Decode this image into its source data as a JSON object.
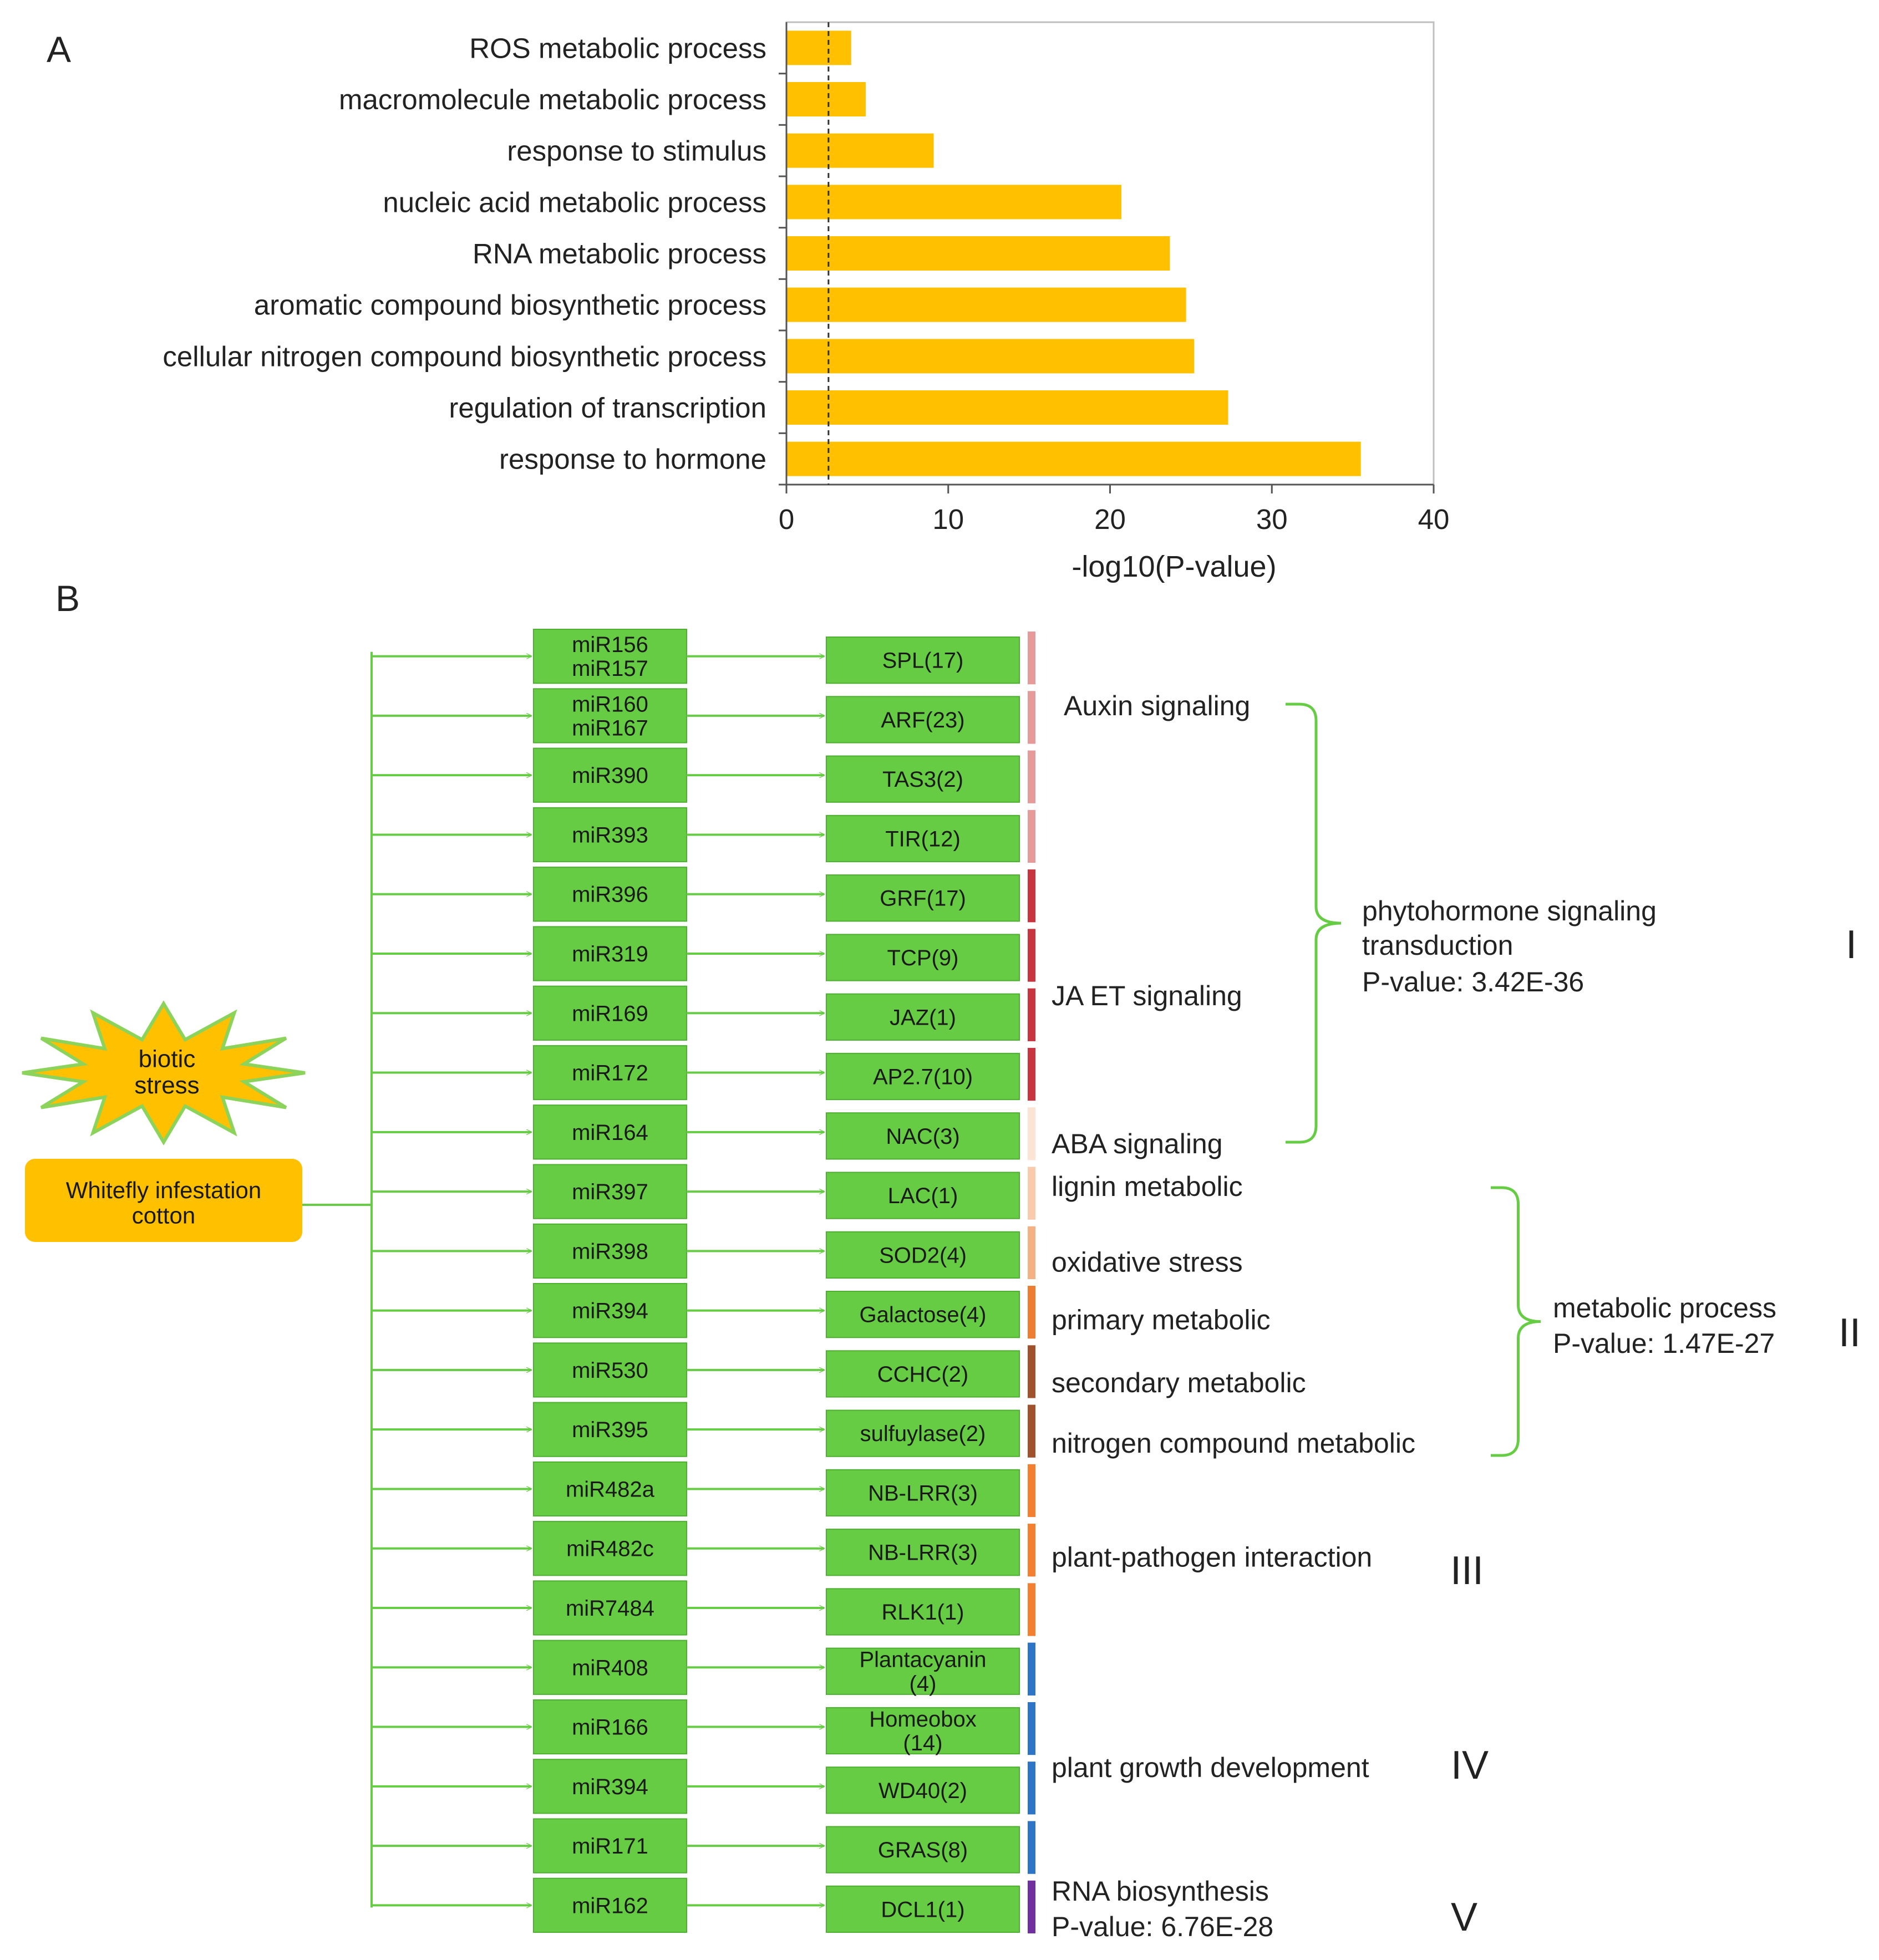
{
  "panelA": {
    "panel_label": "A",
    "chart_data": {
      "type": "bar",
      "orientation": "horizontal",
      "categories": [
        "ROS metabolic process",
        "macromolecule metabolic process",
        "response to stimulus",
        "nucleic acid metabolic process",
        "RNA metabolic process",
        "aromatic compound biosynthetic process",
        "cellular nitrogen compound biosynthetic process",
        "regulation of transcription",
        "response to hormone"
      ],
      "values": [
        4.0,
        4.9,
        9.1,
        20.7,
        23.7,
        24.7,
        25.2,
        27.3,
        35.5
      ],
      "title": "",
      "xlabel": "-log10(P-value)",
      "ylabel": "",
      "xlim": [
        0,
        40
      ],
      "xticks": [
        "0",
        "10",
        "20",
        "30",
        "40"
      ],
      "threshold": 2.6,
      "bar_color": "#FFC000",
      "grid": false
    }
  },
  "panelB": {
    "panel_label": "B",
    "sources": {
      "stress": "biotic\nstress",
      "infestation": "Whitefly infestation\ncotton"
    },
    "rows": [
      {
        "mirna": "miR156\nmiR157",
        "target": "SPL(17)",
        "bar": "#E79A9A"
      },
      {
        "mirna": "miR160\nmiR167",
        "target": "ARF(23)",
        "bar": "#E79A9A"
      },
      {
        "mirna": "miR390",
        "target": "TAS3(2)",
        "bar": "#E79A9A"
      },
      {
        "mirna": "miR393",
        "target": "TIR(12)",
        "bar": "#E79A9A"
      },
      {
        "mirna": "miR396",
        "target": "GRF(17)",
        "bar": "#C8353F"
      },
      {
        "mirna": "miR319",
        "target": "TCP(9)",
        "bar": "#C8353F"
      },
      {
        "mirna": "miR169",
        "target": "JAZ(1)",
        "bar": "#C8353F"
      },
      {
        "mirna": "miR172",
        "target": "AP2.7(10)",
        "bar": "#C8353F"
      },
      {
        "mirna": "miR164",
        "target": "NAC(3)",
        "bar": "#FBE4D5"
      },
      {
        "mirna": "miR397",
        "target": "LAC(1)",
        "bar": "#F8CBAD"
      },
      {
        "mirna": "miR398",
        "target": "SOD2(4)",
        "bar": "#F4B183"
      },
      {
        "mirna": "miR394",
        "target": "Galactose(4)",
        "bar": "#ED7D31"
      },
      {
        "mirna": "miR530",
        "target": "CCHC(2)",
        "bar": "#A0522D"
      },
      {
        "mirna": "miR395",
        "target": "sulfuylase(2)",
        "bar": "#A0522D"
      },
      {
        "mirna": "miR482a",
        "target": "NB-LRR(3)",
        "bar": "#F47F31"
      },
      {
        "mirna": "miR482c",
        "target": "NB-LRR(3)",
        "bar": "#F47F31"
      },
      {
        "mirna": "miR7484",
        "target": "RLK1(1)",
        "bar": "#F47F31"
      },
      {
        "mirna": "miR408",
        "target": "Plantacyanin\n(4)",
        "bar": "#2E75C8"
      },
      {
        "mirna": "miR166",
        "target": "Homeobox\n(14)",
        "bar": "#2E75C8"
      },
      {
        "mirna": "miR394",
        "target": "WD40(2)",
        "bar": "#2E75C8"
      },
      {
        "mirna": "miR171",
        "target": "GRAS(8)",
        "bar": "#2E75C8"
      },
      {
        "mirna": "miR162",
        "target": "DCL1(1)",
        "bar": "#7030A0"
      }
    ],
    "functions": {
      "auxin": "Auxin signaling",
      "ja_et": "JA  ET signaling",
      "aba": "ABA signaling",
      "lignin": "lignin metabolic",
      "oxidative": "oxidative stress",
      "primary": "primary metabolic",
      "secondary": "secondary metabolic",
      "nitrogen": "nitrogen compound metabolic",
      "pathogen": "plant-pathogen interaction",
      "growth": "plant growth development",
      "rna_bio": "RNA biosynthesis",
      "rna_bio_p": "P-value: 6.76E-28"
    },
    "categories": {
      "phyto_line1": "phytohormone signaling",
      "phyto_line2": "transduction",
      "phyto_p": "P-value: 3.42E-36",
      "meta_line1": "metabolic process",
      "meta_p": "P-value: 1.47E-27"
    },
    "roman": [
      "I",
      "II",
      "III",
      "IV",
      "V"
    ],
    "colors": {
      "box_fill": "#66CC44",
      "box_stroke": "#4FAF32",
      "arrow": "#66CC44",
      "star_fill": "#FFC000",
      "star_stroke": "#8BD35A",
      "infestation_fill": "#FFC000"
    }
  }
}
